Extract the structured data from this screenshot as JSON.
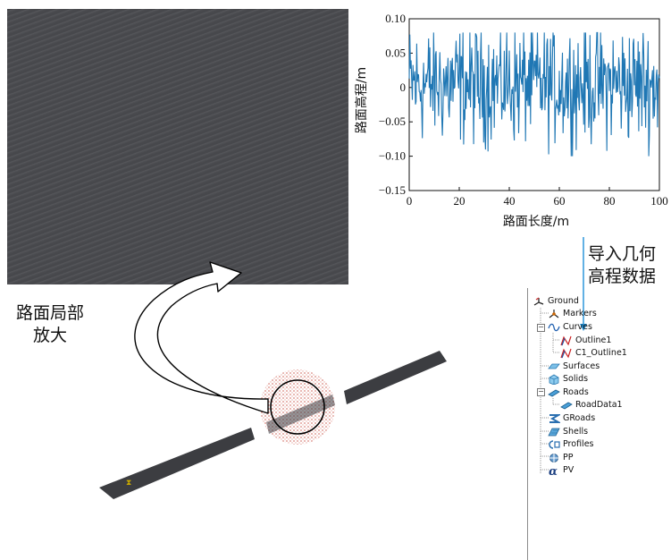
{
  "zoom_caption": [
    "路面局部",
    "放大"
  ],
  "import_caption": [
    "导入几何",
    "高程数据"
  ],
  "chart_data": {
    "type": "line",
    "xlabel": "路面长度/m",
    "ylabel": "路面高程/m",
    "xlim": [
      0,
      100
    ],
    "ylim": [
      -0.15,
      0.1
    ],
    "xticks": [
      "0",
      "20",
      "40",
      "60",
      "80",
      "100"
    ],
    "yticks": [
      "0.10",
      "0.05",
      "0",
      "−0.05",
      "−0.10",
      "−0.15"
    ],
    "line_color": "#1f77b4",
    "points": 400,
    "amplitude_note_max": 0.08,
    "amplitude_note_min": -0.1
  },
  "tree": {
    "items": [
      {
        "label": "Ground",
        "icon": "ground-icon"
      },
      {
        "label": "Markers",
        "icon": "markers-icon"
      },
      {
        "label": "Curves",
        "icon": "curves-icon"
      },
      {
        "label": "Outline1",
        "icon": "outline-icon"
      },
      {
        "label": "C1_Outline1",
        "icon": "outline-icon"
      },
      {
        "label": "Surfaces",
        "icon": "surfaces-icon"
      },
      {
        "label": "Solids",
        "icon": "solids-icon"
      },
      {
        "label": "Roads",
        "icon": "roads-icon"
      },
      {
        "label": "RoadData1",
        "icon": "road-data-icon"
      },
      {
        "label": "GRoads",
        "icon": "groads-icon"
      },
      {
        "label": "Shells",
        "icon": "shells-icon"
      },
      {
        "label": "Profiles",
        "icon": "profiles-icon"
      },
      {
        "label": "PP",
        "icon": "pp-icon"
      },
      {
        "label": "PV",
        "icon": "pv-icon"
      }
    ]
  },
  "colors": {
    "road_surface": "#3c3d41",
    "callout_stroke": "#000000",
    "highlight_dots": "#d9847c",
    "import_arrow": "#1e90d8"
  }
}
